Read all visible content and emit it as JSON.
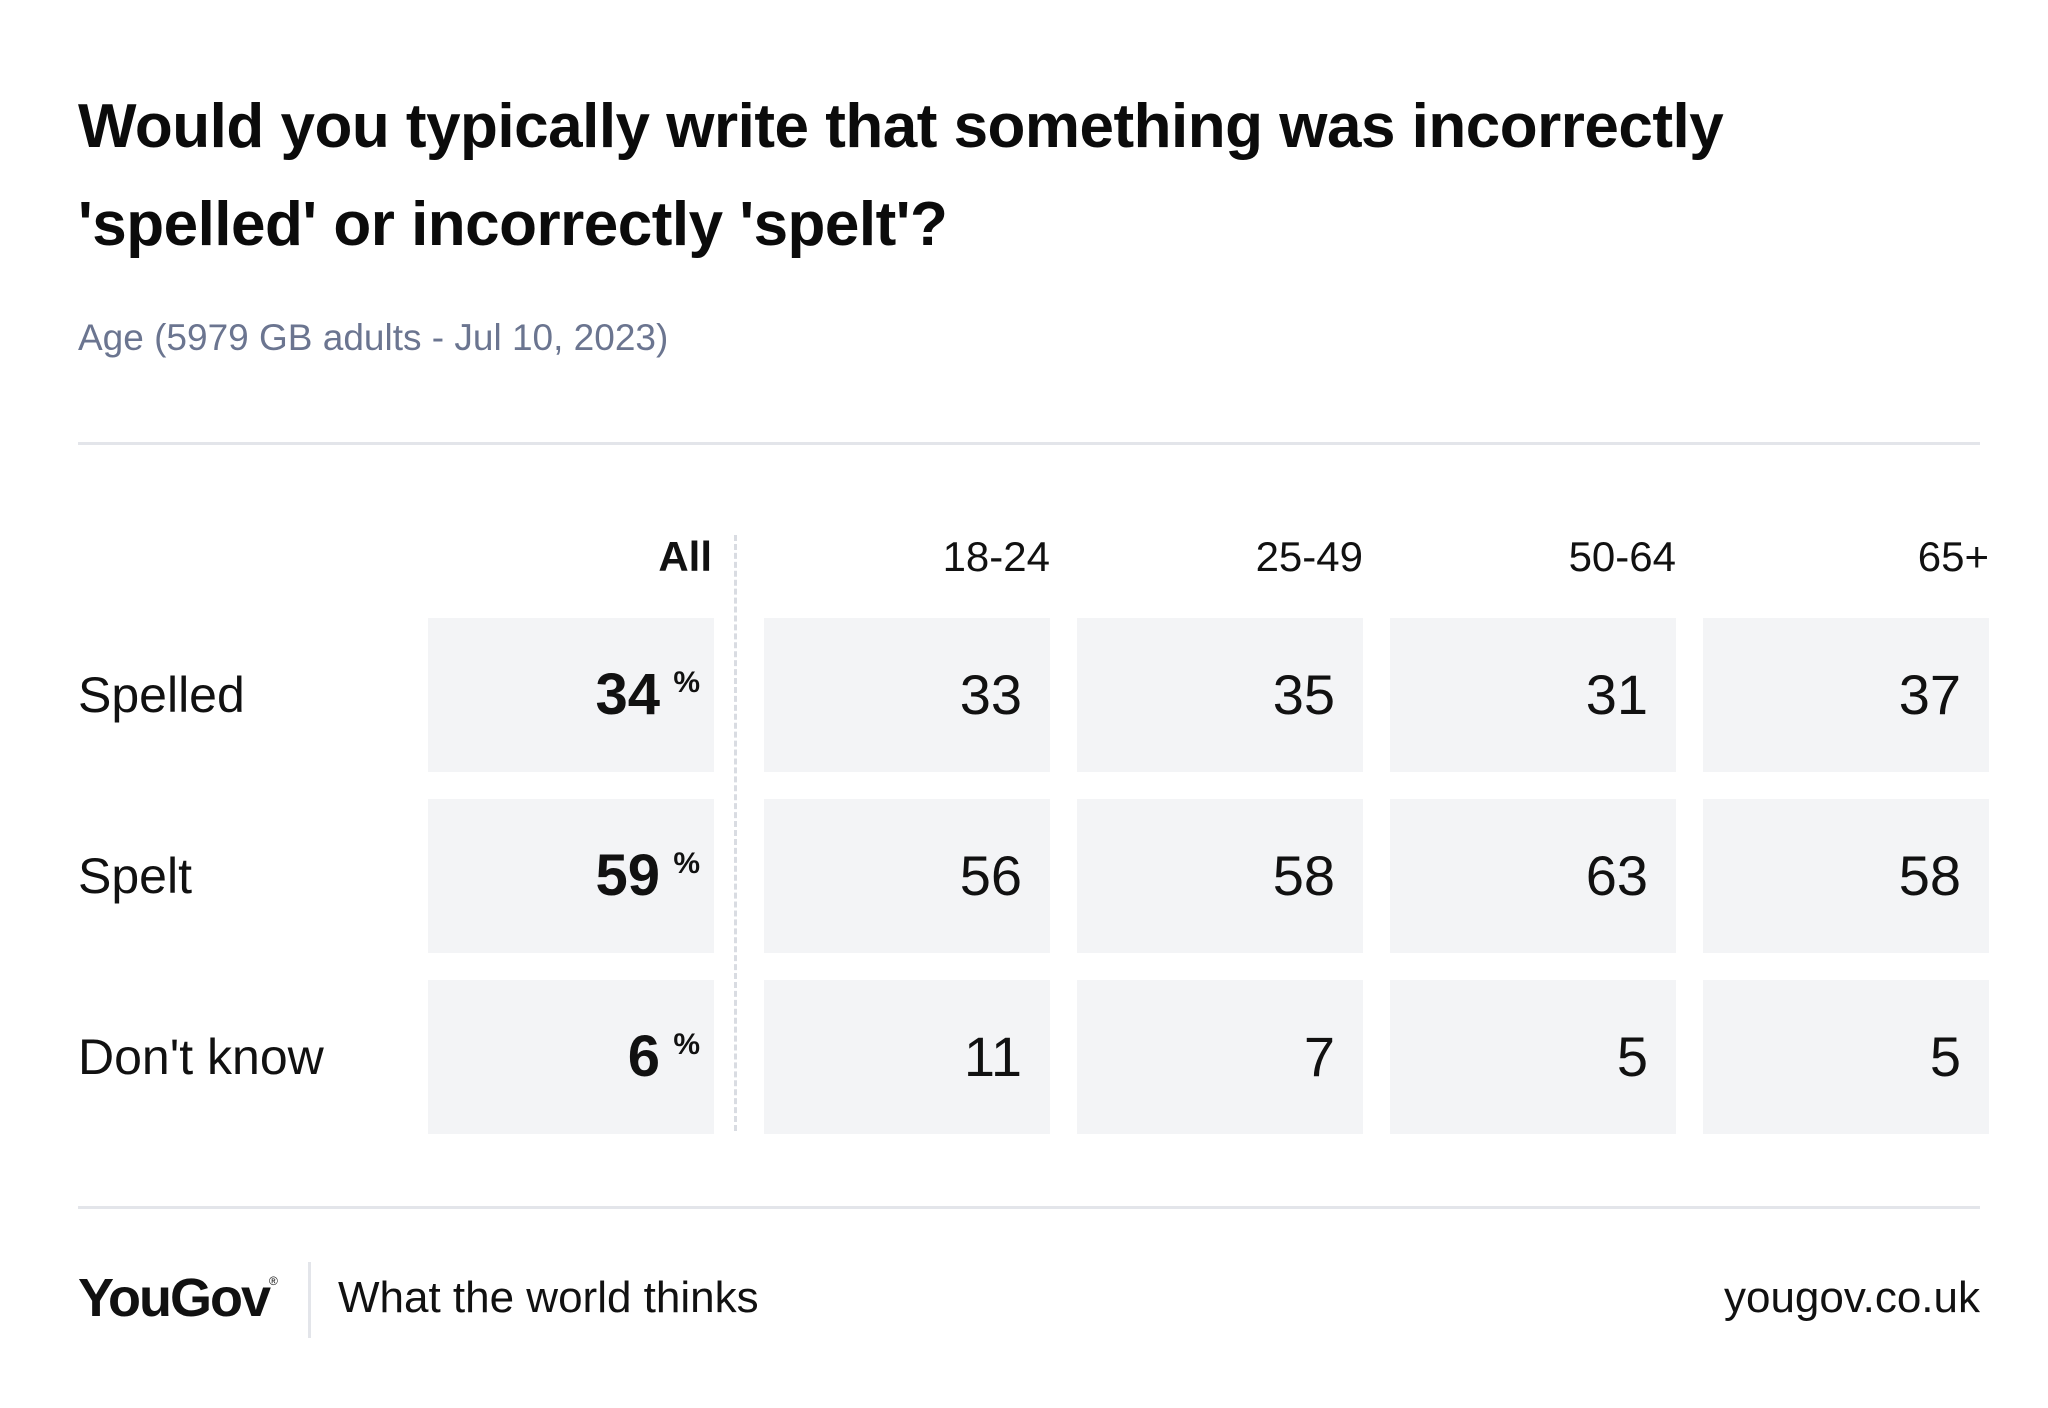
{
  "header": {
    "title": "Would you typically write that something was incorrectly 'spelled' or incorrectly 'spelt'?",
    "subtitle": "Age (5979 GB adults - Jul 10, 2023)"
  },
  "chart_data": {
    "type": "table",
    "title": "Would you typically write that something was incorrectly 'spelled' or incorrectly 'spelt'?",
    "subtitle": "Age (5979 GB adults - Jul 10, 2023)",
    "columns": [
      "All",
      "18-24",
      "25-49",
      "50-64",
      "65+"
    ],
    "rows": [
      "Spelled",
      "Spelt",
      "Don't know"
    ],
    "unit": "%",
    "values": [
      [
        "34",
        "33",
        "35",
        "31",
        "37"
      ],
      [
        "59",
        "56",
        "58",
        "63",
        "58"
      ],
      [
        "6",
        "11",
        "7",
        "5",
        "5"
      ]
    ]
  },
  "footer": {
    "brand": "YouGov",
    "registered_mark": "®",
    "tagline": "What the world thinks",
    "site": "yougov.co.uk"
  }
}
